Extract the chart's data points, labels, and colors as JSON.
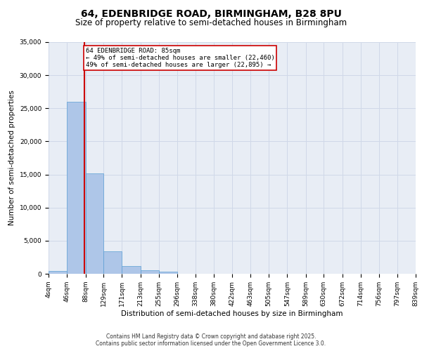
{
  "title1": "64, EDENBRIDGE ROAD, BIRMINGHAM, B28 8PU",
  "title2": "Size of property relative to semi-detached houses in Birmingham",
  "xlabel": "Distribution of semi-detached houses by size in Birmingham",
  "ylabel": "Number of semi-detached properties",
  "property_size": 85,
  "property_label": "64 EDENBRIDGE ROAD: 85sqm",
  "smaller_pct": "49% of semi-detached houses are smaller (22,460)",
  "larger_pct": "49% of semi-detached houses are larger (22,895)",
  "bin_edges": [
    4,
    46,
    88,
    129,
    171,
    213,
    255,
    296,
    338,
    380,
    422,
    463,
    505,
    547,
    589,
    630,
    672,
    714,
    756,
    797,
    839
  ],
  "bar_heights": [
    400,
    26000,
    15200,
    3400,
    1200,
    500,
    300,
    50,
    10,
    5,
    2,
    1,
    0,
    0,
    0,
    0,
    0,
    0,
    0,
    0
  ],
  "bar_color": "#aec6e8",
  "bar_edge_color": "#5a9fd4",
  "red_line_color": "#cc0000",
  "annotation_box_color": "#cc0000",
  "grid_color": "#d0d8e8",
  "bg_color": "#e8edf5",
  "ylim": [
    0,
    35000
  ],
  "footer1": "Contains HM Land Registry data © Crown copyright and database right 2025.",
  "footer2": "Contains public sector information licensed under the Open Government Licence 3.0.",
  "title_fontsize": 10,
  "subtitle_fontsize": 8.5,
  "axis_label_fontsize": 7.5,
  "tick_fontsize": 6.5,
  "annotation_fontsize": 6.5,
  "footer_fontsize": 5.5
}
